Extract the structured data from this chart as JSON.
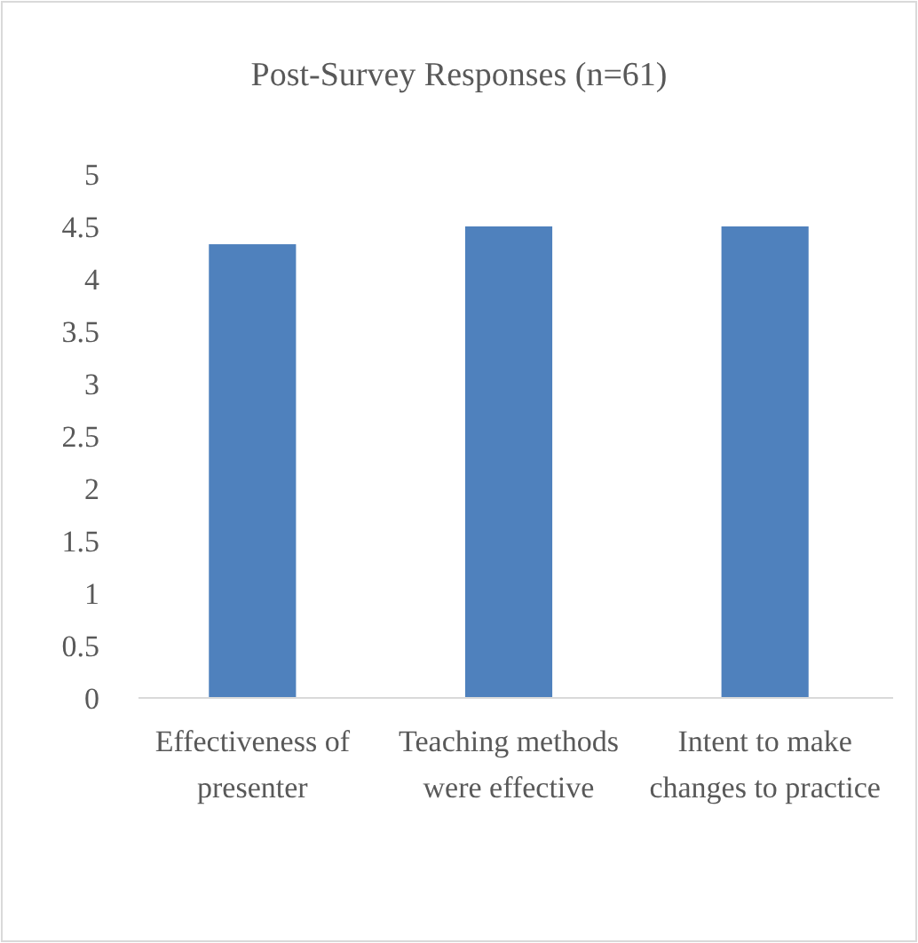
{
  "chart_data": {
    "type": "bar",
    "title": "Post-Survey Responses (n=61)",
    "categories": [
      "Effectiveness of presenter",
      "Teaching methods were effective",
      "Intent to make changes to practice"
    ],
    "values": [
      4.33,
      4.5,
      4.5
    ],
    "color": "#4f81bd",
    "ylim": [
      0,
      5
    ],
    "yticks": [
      0,
      0.5,
      1,
      1.5,
      2,
      2.5,
      3,
      3.5,
      4,
      4.5,
      5
    ],
    "grid": false
  }
}
